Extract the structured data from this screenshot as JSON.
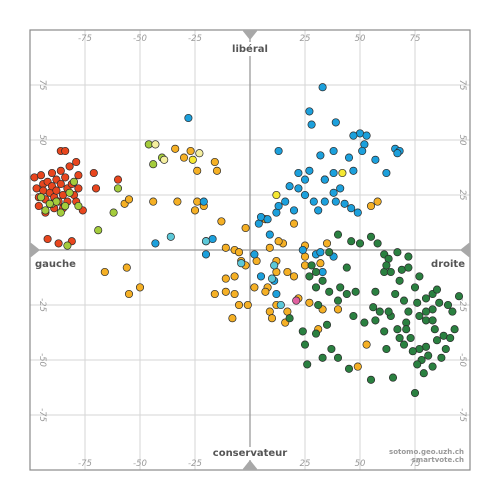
{
  "chart_data": {
    "type": "scatter",
    "title": "",
    "xlim": [
      -100,
      100
    ],
    "ylim": [
      -100,
      100
    ],
    "x_ticks": [
      -75,
      -50,
      -25,
      25,
      50,
      75
    ],
    "y_ticks": [
      -75,
      -50,
      -25,
      25,
      50,
      75
    ],
    "axis_labels": {
      "left": "gauche",
      "right": "droite",
      "top": "libéral",
      "bottom": "conservateur"
    },
    "credit_lines": [
      "sotomo.geo.uzh.ch",
      "smartvote.ch"
    ],
    "grid": true,
    "colors": {
      "red": "#e8461e",
      "lightgreen": "#a4cc3c",
      "orange": "#f5b025",
      "yellow": "#f5e832",
      "paleyellow": "#f5efa0",
      "blue": "#1ca0dc",
      "teal": "#5cc8d8",
      "darkgreen": "#2a8040",
      "pink": "#e060a0",
      "grid": "#d6d6d6",
      "axis": "#9a9a9a",
      "frame": "#8a8a8a"
    },
    "series": [
      {
        "color": "red",
        "points": [
          [
            -98,
            33
          ],
          [
            -97,
            28
          ],
          [
            -96,
            24
          ],
          [
            -96,
            20
          ],
          [
            -95,
            34
          ],
          [
            -94,
            30
          ],
          [
            -94,
            27
          ],
          [
            -93,
            23
          ],
          [
            -93,
            17
          ],
          [
            -92,
            31
          ],
          [
            -91,
            26
          ],
          [
            -91,
            21
          ],
          [
            -90,
            35
          ],
          [
            -90,
            29
          ],
          [
            -89,
            24
          ],
          [
            -89,
            19
          ],
          [
            -88,
            32
          ],
          [
            -88,
            27
          ],
          [
            -87,
            22
          ],
          [
            -86,
            45
          ],
          [
            -86,
            36
          ],
          [
            -86,
            30
          ],
          [
            -85,
            25
          ],
          [
            -85,
            19
          ],
          [
            -84,
            45
          ],
          [
            -84,
            33
          ],
          [
            -83,
            28
          ],
          [
            -83,
            22
          ],
          [
            -82,
            38
          ],
          [
            -81,
            30
          ],
          [
            -80,
            25
          ],
          [
            -79,
            40
          ],
          [
            -79,
            22
          ],
          [
            -78,
            34
          ],
          [
            -78,
            28
          ],
          [
            -76,
            18
          ],
          [
            -92,
            5
          ],
          [
            -87,
            3
          ],
          [
            -81,
            4
          ],
          [
            -71,
            35
          ],
          [
            -70,
            28
          ],
          [
            -60,
            32
          ]
        ]
      },
      {
        "color": "lightgreen",
        "points": [
          [
            -95,
            24
          ],
          [
            -93,
            18
          ],
          [
            -90,
            21
          ],
          [
            -88,
            22
          ],
          [
            -86,
            17
          ],
          [
            -84,
            20
          ],
          [
            -82,
            26
          ],
          [
            -80,
            31
          ],
          [
            -78,
            20
          ],
          [
            -69,
            9
          ],
          [
            -62,
            17
          ],
          [
            -60,
            28
          ],
          [
            -46,
            48
          ],
          [
            -44,
            39
          ],
          [
            -40,
            42
          ],
          [
            -83,
            2
          ],
          [
            -91,
            21
          ]
        ]
      },
      {
        "color": "orange",
        "points": [
          [
            -34,
            46
          ],
          [
            -30,
            42
          ],
          [
            -27,
            45
          ],
          [
            -24,
            36
          ],
          [
            -16,
            40
          ],
          [
            -15,
            36
          ],
          [
            -21,
            20
          ],
          [
            -24,
            22
          ],
          [
            -33,
            22
          ],
          [
            -57,
            21
          ],
          [
            -44,
            22
          ],
          [
            -55,
            23
          ],
          [
            -20,
            4
          ],
          [
            -11,
            1
          ],
          [
            -7,
            0
          ],
          [
            -4,
            -5
          ],
          [
            -2,
            -7
          ],
          [
            -7,
            -12
          ],
          [
            -11,
            -13
          ],
          [
            -11,
            -19
          ],
          [
            -16,
            -20
          ],
          [
            -7,
            -20
          ],
          [
            -8,
            -31
          ],
          [
            -50,
            -17
          ],
          [
            -55,
            -20
          ],
          [
            -56,
            -8
          ],
          [
            -66,
            -10
          ],
          [
            -25,
            18
          ],
          [
            -13,
            13
          ],
          [
            7,
            14
          ],
          [
            20,
            12
          ],
          [
            15,
            3
          ],
          [
            25,
            2
          ],
          [
            35,
            3
          ],
          [
            25,
            -7
          ],
          [
            20,
            -12
          ],
          [
            22,
            -22
          ],
          [
            27,
            -24
          ],
          [
            8,
            -17
          ],
          [
            2,
            -17
          ],
          [
            7,
            -19
          ],
          [
            12,
            -25
          ],
          [
            -5,
            -25
          ],
          [
            17,
            -28
          ],
          [
            33,
            -27
          ],
          [
            40,
            -27
          ],
          [
            31,
            -36
          ],
          [
            9,
            -28
          ],
          [
            10,
            -31
          ],
          [
            -1,
            -25
          ],
          [
            16,
            -33
          ],
          [
            49,
            -53
          ],
          [
            55,
            20
          ],
          [
            58,
            22
          ],
          [
            12,
            -10
          ],
          [
            17,
            -10
          ],
          [
            12,
            -5
          ],
          [
            9,
            1
          ],
          [
            -5,
            -1
          ],
          [
            13,
            4
          ],
          [
            32,
            -6
          ],
          [
            25,
            -3
          ],
          [
            3,
            -5
          ],
          [
            53,
            -43
          ],
          [
            -2,
            10
          ]
        ]
      },
      {
        "color": "yellow",
        "points": [
          [
            -26,
            41
          ],
          [
            34,
            32
          ],
          [
            42,
            35
          ],
          [
            12,
            25
          ]
        ]
      },
      {
        "color": "paleyellow",
        "points": [
          [
            -39,
            41
          ],
          [
            -43,
            48
          ],
          [
            -23,
            44
          ]
        ]
      },
      {
        "color": "blue",
        "points": [
          [
            -28,
            60
          ],
          [
            33,
            74
          ],
          [
            27,
            63
          ],
          [
            39,
            58
          ],
          [
            28,
            57
          ],
          [
            50,
            53
          ],
          [
            53,
            52
          ],
          [
            47,
            52
          ],
          [
            52,
            48
          ],
          [
            57,
            41
          ],
          [
            66,
            46
          ],
          [
            38,
            45
          ],
          [
            51,
            45
          ],
          [
            13,
            45
          ],
          [
            32,
            43
          ],
          [
            45,
            42
          ],
          [
            34,
            32
          ],
          [
            27,
            36
          ],
          [
            18,
            29
          ],
          [
            22,
            28
          ],
          [
            25,
            25
          ],
          [
            16,
            22
          ],
          [
            29,
            22
          ],
          [
            34,
            22
          ],
          [
            20,
            18
          ],
          [
            12,
            17
          ],
          [
            13,
            20
          ],
          [
            4,
            12
          ],
          [
            31,
            18
          ],
          [
            38,
            35
          ],
          [
            41,
            28
          ],
          [
            43,
            21
          ],
          [
            46,
            19
          ],
          [
            5,
            15
          ],
          [
            8,
            14
          ],
          [
            -21,
            22
          ],
          [
            24,
            0
          ],
          [
            30,
            -2
          ],
          [
            38,
            -3
          ],
          [
            33,
            -10
          ],
          [
            -17,
            5
          ],
          [
            9,
            7
          ],
          [
            22,
            35
          ],
          [
            38,
            26
          ],
          [
            47,
            36
          ],
          [
            62,
            35
          ],
          [
            49,
            17
          ],
          [
            68,
            45
          ],
          [
            67,
            44
          ],
          [
            25,
            32
          ],
          [
            39,
            22
          ],
          [
            32,
            -1
          ],
          [
            -20,
            -2
          ],
          [
            -43,
            3
          ],
          [
            12,
            -20
          ],
          [
            11,
            -14
          ],
          [
            5,
            -12
          ],
          [
            2,
            -2
          ]
        ]
      },
      {
        "color": "teal",
        "points": [
          [
            -36,
            6
          ],
          [
            -20,
            4
          ],
          [
            11,
            -7
          ],
          [
            10,
            -13
          ],
          [
            -4,
            -6
          ],
          [
            14,
            -25
          ]
        ]
      },
      {
        "color": "pink",
        "points": [
          [
            21,
            -23
          ]
        ]
      },
      {
        "color": "darkgreen",
        "points": [
          [
            40,
            7
          ],
          [
            46,
            4
          ],
          [
            50,
            3
          ],
          [
            55,
            6
          ],
          [
            58,
            3
          ],
          [
            61,
            -2
          ],
          [
            63,
            -4
          ],
          [
            67,
            -1
          ],
          [
            72,
            -3
          ],
          [
            61,
            -10
          ],
          [
            64,
            -10
          ],
          [
            69,
            -9
          ],
          [
            72,
            -8
          ],
          [
            77,
            -12
          ],
          [
            75,
            -17
          ],
          [
            80,
            -22
          ],
          [
            83,
            -20
          ],
          [
            85,
            -18
          ],
          [
            86,
            -24
          ],
          [
            90,
            -25
          ],
          [
            92,
            -28
          ],
          [
            95,
            -21
          ],
          [
            68,
            -14
          ],
          [
            66,
            -20
          ],
          [
            70,
            -23
          ],
          [
            76,
            -24
          ],
          [
            72,
            -28
          ],
          [
            77,
            -30
          ],
          [
            80,
            -32
          ],
          [
            83,
            -32
          ],
          [
            84,
            -36
          ],
          [
            88,
            -39
          ],
          [
            85,
            -41
          ],
          [
            80,
            -44
          ],
          [
            77,
            -45
          ],
          [
            81,
            -48
          ],
          [
            78,
            -50
          ],
          [
            73,
            -40
          ],
          [
            70,
            -43
          ],
          [
            74,
            -46
          ],
          [
            76,
            -52
          ],
          [
            64,
            -30
          ],
          [
            67,
            -36
          ],
          [
            68,
            -40
          ],
          [
            71,
            -33
          ],
          [
            63,
            -28
          ],
          [
            59,
            -28
          ],
          [
            56,
            -26
          ],
          [
            57,
            -32
          ],
          [
            61,
            -37
          ],
          [
            62,
            -45
          ],
          [
            52,
            -33
          ],
          [
            47,
            -30
          ],
          [
            44,
            -20
          ],
          [
            41,
            -17
          ],
          [
            40,
            -23
          ],
          [
            36,
            -19
          ],
          [
            33,
            -14
          ],
          [
            30,
            -10
          ],
          [
            28,
            -7
          ],
          [
            27,
            -12
          ],
          [
            31,
            -25
          ],
          [
            35,
            -34
          ],
          [
            30,
            -38
          ],
          [
            25,
            -43
          ],
          [
            26,
            -52
          ],
          [
            33,
            -49
          ],
          [
            45,
            -54
          ],
          [
            55,
            -59
          ],
          [
            65,
            -58
          ],
          [
            75,
            -65
          ],
          [
            79,
            -56
          ],
          [
            83,
            -53
          ],
          [
            87,
            -49
          ],
          [
            89,
            -45
          ],
          [
            91,
            -40
          ],
          [
            93,
            -36
          ],
          [
            83,
            -27
          ],
          [
            80,
            -28
          ],
          [
            71,
            -36
          ],
          [
            37,
            -45
          ],
          [
            40,
            -49
          ],
          [
            18,
            -31
          ],
          [
            24,
            -37
          ],
          [
            36,
            -1
          ],
          [
            44,
            -8
          ],
          [
            30,
            -17
          ],
          [
            62,
            -7
          ],
          [
            57,
            -19
          ],
          [
            48,
            -19
          ]
        ]
      }
    ]
  }
}
